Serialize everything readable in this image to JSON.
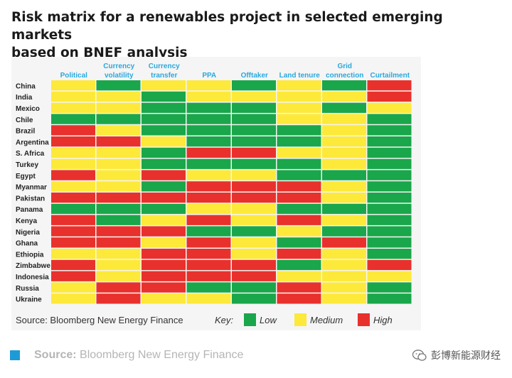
{
  "chart_data": {
    "type": "heatmap",
    "title_line1": "Risk matrix for a renewables project in selected emerging markets",
    "title_line2": "based on BNEF analysis",
    "columns": [
      "Political",
      "Currency\nvolatility",
      "Currency\ntransfer",
      "PPA",
      "Offtaker",
      "Land tenure",
      "Grid\nconnection",
      "Curtailment"
    ],
    "rows": [
      "China",
      "India",
      "Mexico",
      "Chile",
      "Brazil",
      "Argentina",
      "S. Africa",
      "Turkey",
      "Egypt",
      "Myanmar",
      "Pakistan",
      "Panama",
      "Kenya",
      "Nigeria",
      "Ghana",
      "Ethiopia",
      "Zimbabwe",
      "Indonesia",
      "Russia",
      "Ukraine"
    ],
    "levels": {
      "L": "Low",
      "M": "Medium",
      "H": "High"
    },
    "values": [
      [
        "M",
        "L",
        "M",
        "M",
        "L",
        "M",
        "L",
        "H"
      ],
      [
        "M",
        "M",
        "L",
        "M",
        "M",
        "M",
        "M",
        "H"
      ],
      [
        "M",
        "M",
        "L",
        "L",
        "L",
        "M",
        "L",
        "M"
      ],
      [
        "L",
        "L",
        "L",
        "L",
        "L",
        "M",
        "M",
        "L"
      ],
      [
        "H",
        "M",
        "L",
        "L",
        "L",
        "L",
        "M",
        "L"
      ],
      [
        "H",
        "H",
        "M",
        "L",
        "L",
        "L",
        "M",
        "L"
      ],
      [
        "M",
        "M",
        "L",
        "H",
        "H",
        "M",
        "M",
        "L"
      ],
      [
        "M",
        "M",
        "L",
        "L",
        "L",
        "L",
        "M",
        "L"
      ],
      [
        "H",
        "M",
        "H",
        "M",
        "M",
        "L",
        "L",
        "L"
      ],
      [
        "M",
        "M",
        "L",
        "H",
        "H",
        "H",
        "M",
        "L"
      ],
      [
        "H",
        "H",
        "H",
        "H",
        "H",
        "H",
        "M",
        "L"
      ],
      [
        "L",
        "L",
        "L",
        "M",
        "M",
        "L",
        "L",
        "L"
      ],
      [
        "H",
        "L",
        "M",
        "H",
        "M",
        "H",
        "M",
        "L"
      ],
      [
        "H",
        "H",
        "H",
        "L",
        "L",
        "M",
        "L",
        "L"
      ],
      [
        "H",
        "H",
        "M",
        "H",
        "M",
        "L",
        "H",
        "L"
      ],
      [
        "M",
        "M",
        "H",
        "H",
        "M",
        "H",
        "M",
        "L"
      ],
      [
        "H",
        "M",
        "H",
        "H",
        "H",
        "L",
        "M",
        "H"
      ],
      [
        "H",
        "M",
        "H",
        "H",
        "H",
        "M",
        "M",
        "M"
      ],
      [
        "M",
        "H",
        "H",
        "L",
        "L",
        "H",
        "M",
        "L"
      ],
      [
        "M",
        "H",
        "M",
        "M",
        "L",
        "H",
        "M",
        "L"
      ]
    ],
    "colors": {
      "L": "#1aa64a",
      "M": "#fde93a",
      "H": "#e8312c",
      "header": "#2aa8dc"
    },
    "source": "Source: Bloomberg New Energy Finance",
    "key_label": "Key:",
    "key": [
      {
        "code": "L",
        "label": "Low"
      },
      {
        "code": "M",
        "label": "Medium"
      },
      {
        "code": "H",
        "label": "High"
      }
    ]
  },
  "footer": {
    "source_label": "Source:",
    "source_name": "Bloomberg New Energy Finance",
    "square_color": "#1e9bd7"
  },
  "watermark": {
    "text": "彭博新能源财经",
    "icon": "wechat-icon"
  }
}
